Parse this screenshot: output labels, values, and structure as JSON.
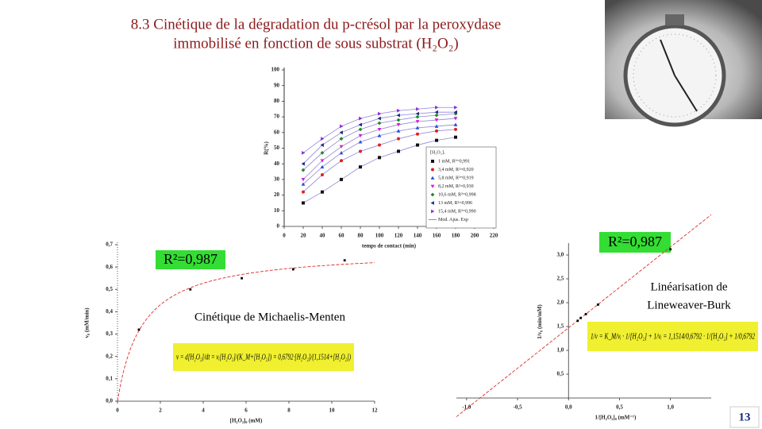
{
  "title_lines": [
    "8.3 Cinétique de la dégradation du p-crésol par la peroxydase",
    "immobilisé en fonction de sous substrat (H₂O₂)"
  ],
  "page_number": "13",
  "chart_data": [
    {
      "type": "line",
      "xlabel": "temps de contact (min)",
      "ylabel": "R(%)",
      "x": [
        20,
        40,
        60,
        80,
        100,
        120,
        140,
        160,
        180
      ],
      "xlim": [
        0,
        220
      ],
      "xticks": [
        0,
        20,
        40,
        60,
        80,
        100,
        120,
        140,
        160,
        180,
        200,
        220
      ],
      "ylim": [
        0,
        100
      ],
      "yticks": [
        0,
        10,
        20,
        30,
        40,
        50,
        60,
        70,
        80,
        90,
        100
      ],
      "legend_title": "[H₂O₂]ᵢ",
      "fit_label": "Mod. Ajus. Exp",
      "fit_color": "#8f86d6",
      "series": [
        {
          "name": "1 mM, R²=0,991",
          "color": "#111111",
          "marker": "square",
          "values": [
            15,
            22,
            30,
            38,
            44,
            48,
            52,
            55,
            57
          ]
        },
        {
          "name": "3,4 mM, R²=0,920",
          "color": "#e02020",
          "marker": "circle",
          "values": [
            22,
            33,
            42,
            48,
            52,
            56,
            59,
            61,
            62
          ]
        },
        {
          "name": "5,8 mM, R²=0,919",
          "color": "#2a4ee0",
          "marker": "triangle-up",
          "values": [
            27,
            38,
            47,
            54,
            58,
            61,
            63,
            64,
            65
          ]
        },
        {
          "name": "8,2 mM, R²=0,930",
          "color": "#d020d0",
          "marker": "triangle-down",
          "values": [
            30,
            42,
            51,
            58,
            62,
            65,
            67,
            68,
            69
          ]
        },
        {
          "name": "10,6 mM, R²=0,998",
          "color": "#1a8a2a",
          "marker": "diamond",
          "values": [
            36,
            47,
            56,
            62,
            66,
            68,
            70,
            71,
            72
          ]
        },
        {
          "name": "13 mM, R²=0,996",
          "color": "#1a2a7a",
          "marker": "triangle-left",
          "values": [
            40,
            52,
            60,
            65,
            69,
            71,
            72,
            73,
            73
          ]
        },
        {
          "name": "15,4 mM, R²=0,990",
          "color": "#8a2ae0",
          "marker": "triangle-right",
          "values": [
            47,
            56,
            64,
            69,
            72,
            74,
            75,
            76,
            76
          ]
        }
      ]
    },
    {
      "type": "scatter",
      "xlabel": "[H₂O₂]₀ (mM)",
      "ylabel": "v₀ (mM/min)",
      "x": [
        1,
        3.4,
        5.8,
        8.2,
        10.6
      ],
      "values": [
        0.32,
        0.5,
        0.55,
        0.59,
        0.63
      ],
      "color": "#000000",
      "fit": {
        "vmax": 0.6792,
        "km": 1.1514
      },
      "fit_color": "#e02a2a",
      "xlim": [
        0,
        12
      ],
      "xticks": [
        0,
        2,
        4,
        6,
        8,
        10,
        12
      ],
      "ylim": [
        0,
        0.7
      ],
      "yticks": [
        {
          "value": 0,
          "label": "0,0"
        },
        {
          "value": 0.1,
          "label": "0,1"
        },
        {
          "value": 0.2,
          "label": "0,2"
        },
        {
          "value": 0.3,
          "label": "0,3"
        },
        {
          "value": 0.4,
          "label": "0,4"
        },
        {
          "value": 0.5,
          "label": "0,5"
        },
        {
          "value": 0.6,
          "label": "0,6"
        },
        {
          "value": 0.7,
          "label": "0,7"
        }
      ],
      "r2": "R²=0,987",
      "caption": "Cinétique de Michaelis-Menten",
      "equation": "v = d[H₂O₂]/dt = vᵢ[H₂O₂]/(K_M+[H₂O₂]) = 0,6792·[H₂O₂]/(1,1514+[H₂O₂])"
    },
    {
      "type": "scatter",
      "xlabel": "1/[H₂O₂]₀ (mM⁻¹)",
      "ylabel": "1/v₀ (min/mM)",
      "x": [
        0.09,
        0.12,
        0.17,
        0.29,
        1.0
      ],
      "values": [
        1.62,
        1.68,
        1.76,
        1.96,
        3.12
      ],
      "color": "#000000",
      "fit": {
        "vmax": 0.6792,
        "km": 1.1514
      },
      "fit_color": "#e02a2a",
      "xlim": [
        -1.1,
        1.4
      ],
      "xticks": [
        {
          "value": -1,
          "label": "-1,0"
        },
        {
          "value": -0.5,
          "label": "-0,5"
        },
        {
          "value": 0,
          "label": "0,0"
        },
        {
          "value": 0.5,
          "label": "0,5"
        },
        {
          "value": 1,
          "label": "1,0"
        }
      ],
      "ylim": [
        0,
        3.2
      ],
      "yticks": [
        {
          "value": 0.5,
          "label": "0,5"
        },
        {
          "value": 1,
          "label": "1,0"
        },
        {
          "value": 1.5,
          "label": "1,5"
        },
        {
          "value": 2,
          "label": "2,0"
        },
        {
          "value": 2.5,
          "label": "2,5"
        },
        {
          "value": 3,
          "label": "3,0"
        }
      ],
      "r2": "R²=0,987",
      "caption_lines": [
        "Linéarisation de",
        "Lineweaver-Burk"
      ],
      "equation": "1/v = K_M/vᵢ · 1/[H₂O₂] + 1/vᵢ = 1,1514/0,6792 · 1/[H₂O₂] + 1/0,6792"
    }
  ]
}
